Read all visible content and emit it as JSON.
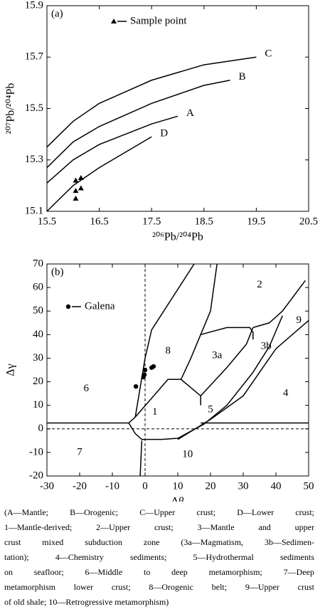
{
  "chart_data": [
    {
      "type": "scatter",
      "title": "(a)",
      "xlabel": "²⁰⁶Pb/²⁰⁴Pb",
      "ylabel": "²⁰⁷Pb/²⁰⁴Pb",
      "xlim": [
        15.5,
        20.5
      ],
      "ylim": [
        15.1,
        15.9
      ],
      "xticks": [
        15.5,
        16.5,
        17.5,
        18.5,
        19.5,
        20.5
      ],
      "yticks": [
        15.1,
        15.3,
        15.5,
        15.7,
        15.9
      ],
      "legend": "upper center",
      "marker": "triangle",
      "series": [
        {
          "name": "C",
          "type": "line",
          "color": "#000000",
          "x": [
            15.5,
            16,
            16.5,
            17.5,
            18.5,
            19.5
          ],
          "values": [
            15.35,
            15.45,
            15.52,
            15.61,
            15.67,
            15.7
          ]
        },
        {
          "name": "B",
          "type": "line",
          "color": "#000000",
          "x": [
            15.5,
            16,
            16.5,
            17.5,
            18.5,
            19
          ],
          "values": [
            15.27,
            15.37,
            15.43,
            15.52,
            15.59,
            15.61
          ]
        },
        {
          "name": "A",
          "type": "line",
          "color": "#000000",
          "x": [
            15.5,
            16,
            16.5,
            17.5,
            18
          ],
          "values": [
            15.21,
            15.3,
            15.36,
            15.44,
            15.47
          ]
        },
        {
          "name": "D",
          "type": "line",
          "color": "#000000",
          "x": [
            15.5,
            16,
            16.5,
            17.5
          ],
          "values": [
            15.1,
            15.2,
            15.27,
            15.39
          ]
        },
        {
          "name": "Sample point",
          "type": "scatter",
          "color": "#000000",
          "x": [
            16.05,
            16.15,
            16.05,
            16.15,
            16.05
          ],
          "values": [
            15.22,
            15.23,
            15.18,
            15.19,
            15.15
          ]
        }
      ]
    },
    {
      "type": "scatter",
      "title": "(b)",
      "xlabel": "Δβ",
      "ylabel": "Δγ",
      "xlim": [
        -30,
        50
      ],
      "ylim": [
        -20,
        70
      ],
      "xticks": [
        -30,
        -20,
        -10,
        0,
        10,
        20,
        30,
        40,
        50
      ],
      "yticks": [
        -20,
        -10,
        0,
        10,
        20,
        30,
        40,
        50,
        60,
        70
      ],
      "legend": "upper left",
      "marker": "circle",
      "vlines": [
        0
      ],
      "hlines": [
        0
      ],
      "series": [
        {
          "type": "line",
          "color": "#000000",
          "x": [
            -30,
            -5
          ],
          "values": [
            2.5,
            2.5
          ]
        },
        {
          "type": "line",
          "color": "#000000",
          "x": [
            17,
            50
          ],
          "values": [
            2.5,
            2.5
          ]
        },
        {
          "type": "line",
          "color": "#000000",
          "x": [
            -5,
            -3,
            -1,
            5
          ],
          "values": [
            2.5,
            -2,
            -4.5,
            -4.5
          ]
        },
        {
          "type": "line",
          "color": "#000000",
          "x": [
            -1.5,
            -1
          ],
          "values": [
            -20,
            -5
          ]
        },
        {
          "type": "line",
          "color": "#000000",
          "x": [
            -5,
            -3,
            7,
            11,
            17,
            17
          ],
          "values": [
            2.5,
            5,
            21,
            21,
            14,
            10
          ]
        },
        {
          "type": "line",
          "color": "#000000",
          "x": [
            -3,
            0,
            2,
            15
          ],
          "values": [
            5,
            30,
            42,
            70
          ]
        },
        {
          "type": "line",
          "color": "#000000",
          "x": [
            11,
            14,
            17,
            20,
            22
          ],
          "values": [
            21,
            30,
            40,
            50,
            70
          ]
        },
        {
          "type": "line",
          "color": "#000000",
          "x": [
            17,
            25,
            32,
            33,
            33
          ],
          "values": [
            40,
            43,
            43,
            41,
            38
          ]
        },
        {
          "type": "line",
          "color": "#000000",
          "x": [
            17,
            25,
            31,
            33
          ],
          "values": [
            14,
            26,
            36,
            43
          ]
        },
        {
          "type": "line",
          "color": "#000000",
          "x": [
            33,
            38,
            42,
            49
          ],
          "values": [
            43,
            45,
            50,
            63
          ]
        },
        {
          "type": "line",
          "color": "#000000",
          "x": [
            5,
            10,
            18,
            25,
            33,
            38,
            42
          ],
          "values": [
            -4.5,
            -4,
            2,
            10,
            24,
            35,
            48
          ]
        },
        {
          "type": "line",
          "color": "#000000",
          "x": [
            10,
            20,
            30,
            40,
            50
          ],
          "values": [
            -4.5,
            4,
            14,
            34,
            46
          ]
        },
        {
          "name": "Galena",
          "type": "scatter",
          "color": "#000000",
          "x": [
            -2.8,
            -0.5,
            -0.2,
            0,
            2,
            2.6
          ],
          "values": [
            18,
            22,
            23,
            25,
            26,
            26.5
          ]
        }
      ],
      "annotations": [
        {
          "text": "1",
          "x": 3,
          "y": 7
        },
        {
          "text": "2",
          "x": 35,
          "y": 61
        },
        {
          "text": "3a",
          "x": 22,
          "y": 31
        },
        {
          "text": "3b",
          "x": 37,
          "y": 35
        },
        {
          "text": "4",
          "x": 43,
          "y": 15
        },
        {
          "text": "5",
          "x": 20,
          "y": 8
        },
        {
          "text": "6",
          "x": -18,
          "y": 17
        },
        {
          "text": "7",
          "x": -20,
          "y": -10
        },
        {
          "text": "8",
          "x": 7,
          "y": 33
        },
        {
          "text": "9",
          "x": 47,
          "y": 46
        },
        {
          "text": "10",
          "x": 13,
          "y": -11
        }
      ]
    }
  ],
  "caption": [
    "(A—Mantle; B—Orogenic; C—Upper crust; D—Lower crust;",
    "1—Mantle-derived; 2—Upper crust; 3—Mantle and upper",
    "crust mixed subduction zone (3a—Magmatism, 3b—Sedimen-",
    "tation); 4—Chemistry sediments; 5—Hydrothermal sediments",
    "on seafloor; 6—Middle to deep metamorphism; 7—Deep",
    "metamorphism lower crust; 8—Orogenic belt; 9—Upper crust",
    "of old shale; 10—Retrogressive metamorphism)"
  ]
}
